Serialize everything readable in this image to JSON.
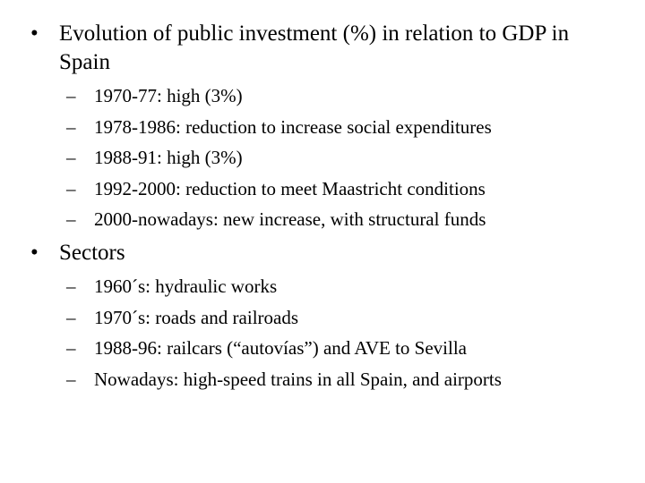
{
  "bullets": [
    {
      "marker": "•",
      "text": "Evolution of public investment (%) in relation to GDP in Spain",
      "subitems": [
        {
          "marker": "–",
          "text": "1970-77: high (3%)"
        },
        {
          "marker": "–",
          "text": "1978-1986: reduction to increase social expenditures"
        },
        {
          "marker": "–",
          "text": "1988-91: high (3%)"
        },
        {
          "marker": "–",
          "text": "1992-2000: reduction to meet Maastricht conditions"
        },
        {
          "marker": "–",
          "text": "2000-nowadays: new increase, with structural funds"
        }
      ]
    },
    {
      "marker": "•",
      "text": "Sectors",
      "subitems": [
        {
          "marker": "–",
          "text": "1960´s: hydraulic works"
        },
        {
          "marker": "–",
          "text": "1970´s: roads and railroads"
        },
        {
          "marker": "–",
          "text": "1988-96: railcars (“autovías”) and AVE to Sevilla"
        },
        {
          "marker": "–",
          "text": "Nowadays: high-speed trains in all Spain, and airports"
        }
      ]
    }
  ]
}
